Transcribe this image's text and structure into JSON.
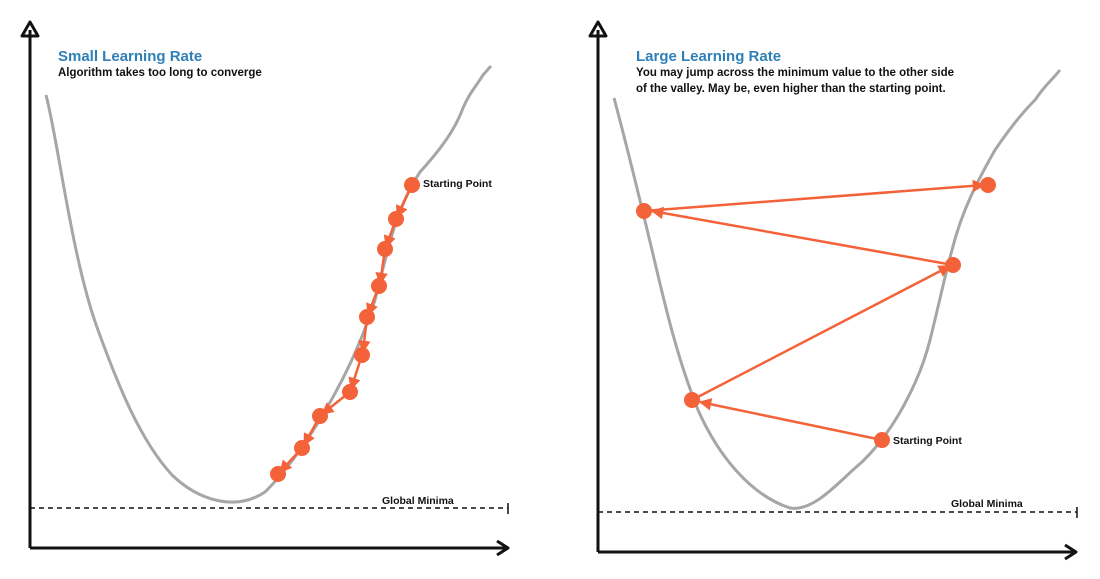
{
  "colors": {
    "accent": "#f4623a",
    "curve": "#a6a6a6",
    "axis": "#111111",
    "title": "#2f7fb8"
  },
  "left_panel": {
    "title": "Small Learning Rate",
    "subtitle": "Algorithm takes too long to converge",
    "start_label": "Starting Point",
    "minima_label": "Global Minima"
  },
  "right_panel": {
    "title": "Large Learning Rate",
    "subtitle_line1": "You may jump across the minimum value to the other side",
    "subtitle_line2": "of the valley. May be, even higher than the starting point.",
    "start_label": "Starting Point",
    "minima_label": "Global Minima"
  }
}
